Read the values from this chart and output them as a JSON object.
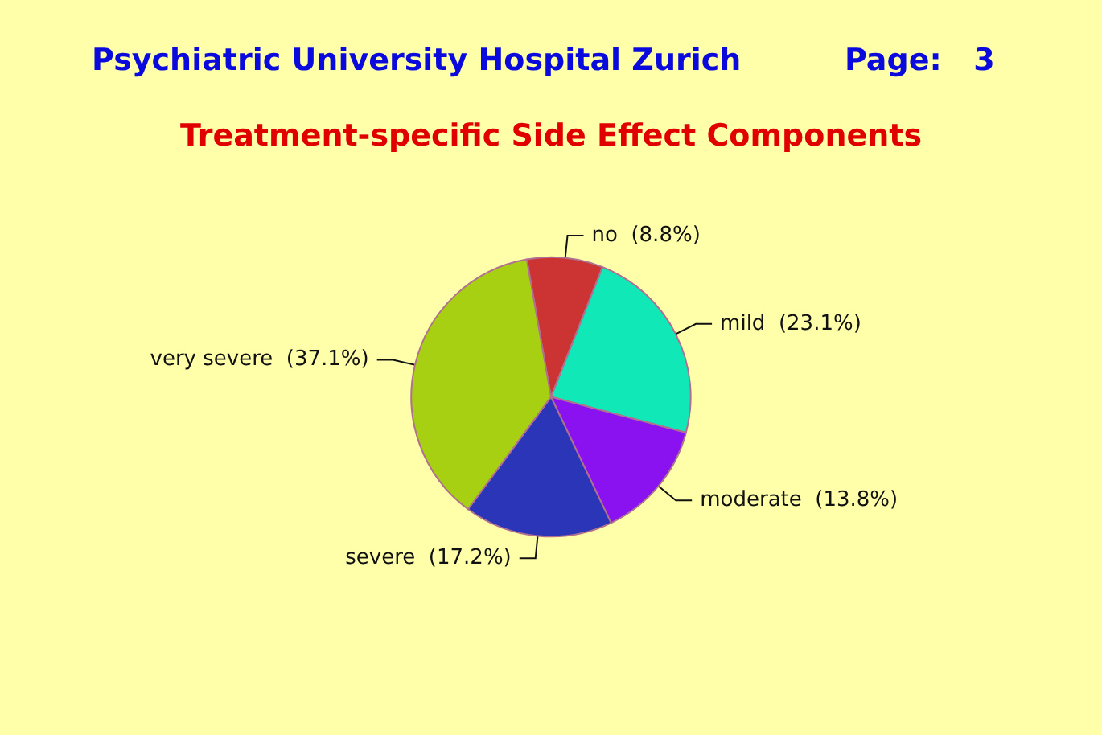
{
  "chart_data": {
    "type": "pie",
    "title": "Treatment-specific Side Effect Components",
    "annotations": [
      "Psychiatric University Hospital Zurich",
      "Page:   3"
    ],
    "categories": [
      "no",
      "mild",
      "moderate",
      "severe",
      "very severe"
    ],
    "values": [
      8.8,
      23.1,
      13.8,
      17.2,
      37.1
    ],
    "value_labels": [
      "(8.8%)",
      "(23.1%)",
      "(13.8%)",
      "(17.2%)",
      "(37.1%)"
    ],
    "colors": [
      "#cc3333",
      "#11e8b8",
      "#8a11f0",
      "#2a35b8",
      "#a8d012"
    ],
    "legend": false
  }
}
